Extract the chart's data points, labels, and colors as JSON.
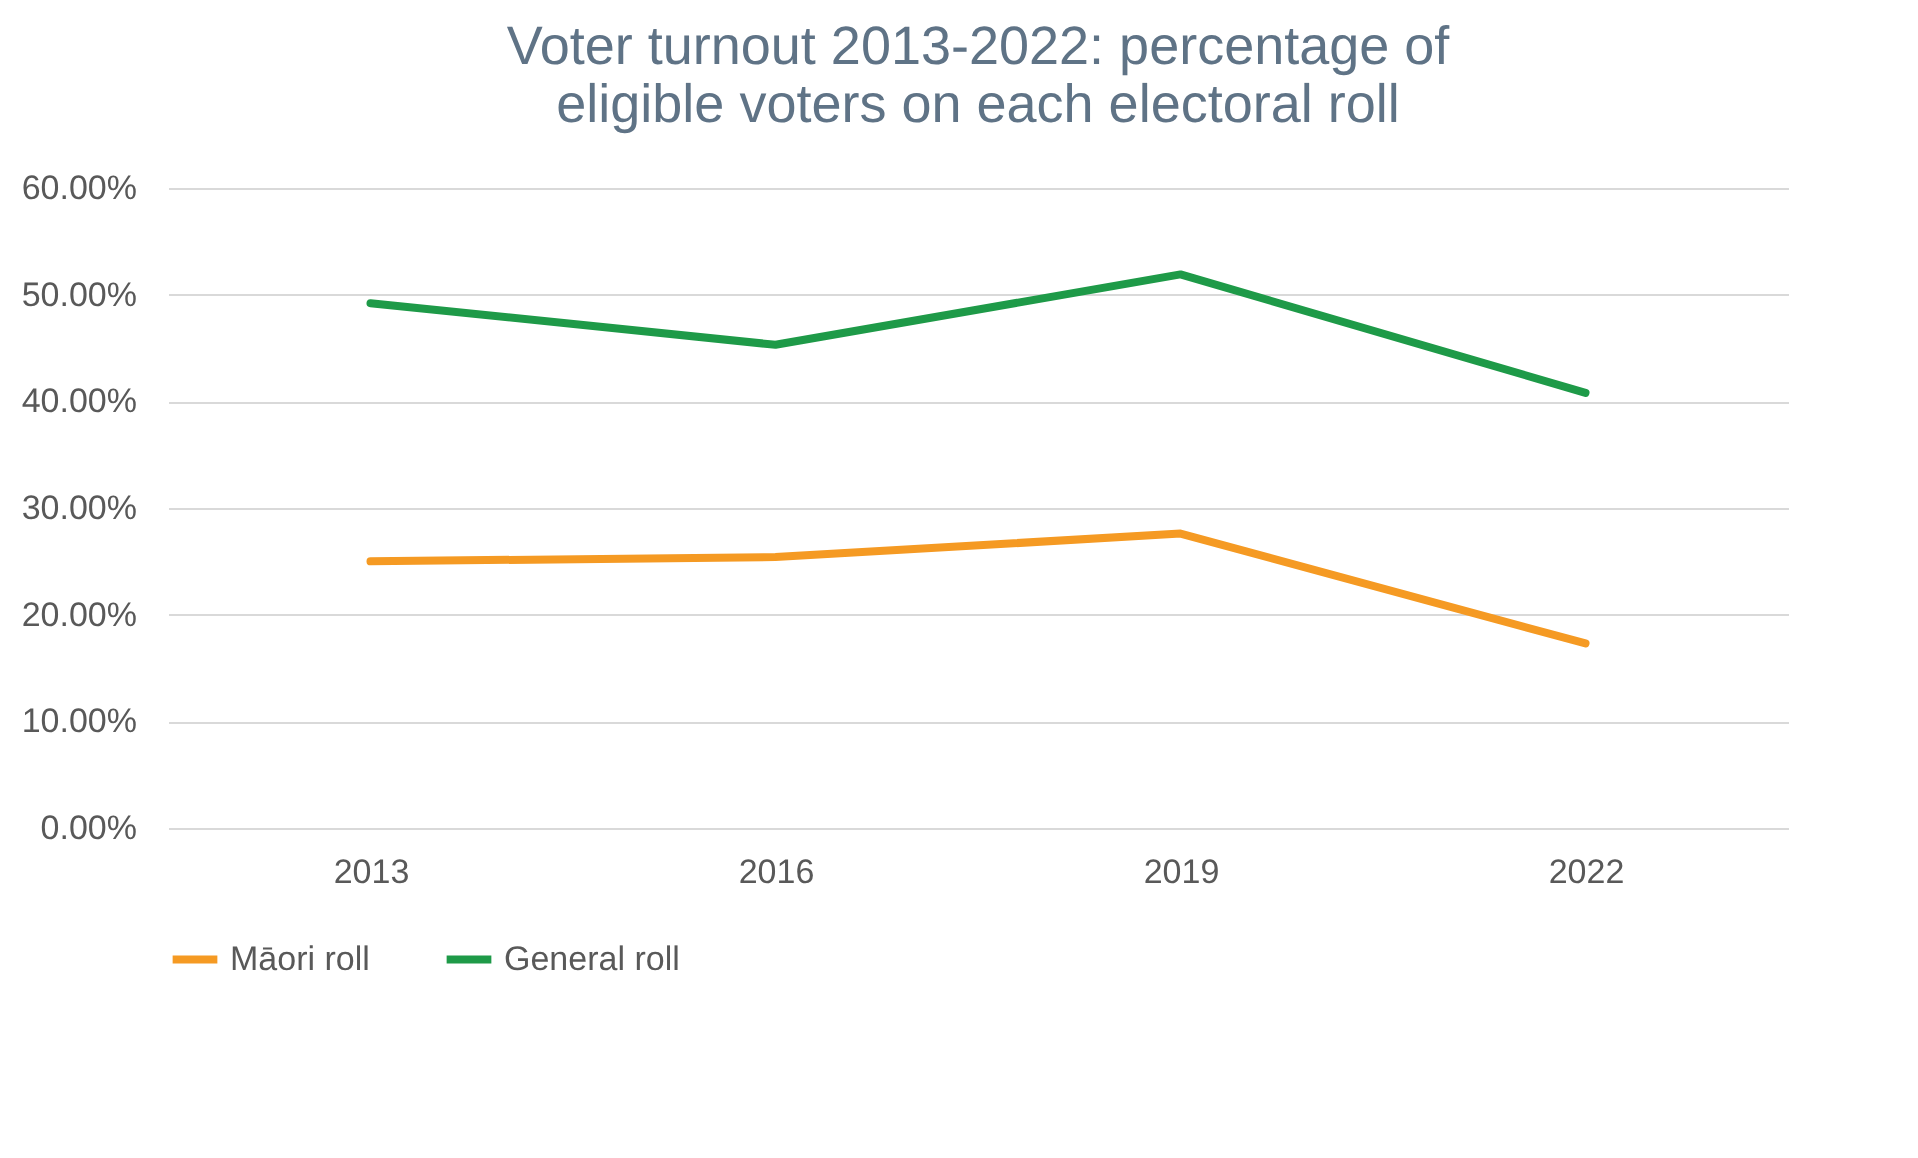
{
  "chart_data": {
    "type": "line",
    "title": [
      "Voter turnout 2013-2022: percentage of",
      "eligible voters on each electoral roll"
    ],
    "categories": [
      "2013",
      "2016",
      "2019",
      "2022"
    ],
    "series": [
      {
        "name": "Māori roll",
        "color": "#f59a23",
        "values": [
          25.0,
          25.4,
          27.6,
          17.3
        ]
      },
      {
        "name": "General roll",
        "color": "#1e9a48",
        "values": [
          49.2,
          45.3,
          51.9,
          40.8
        ]
      }
    ],
    "ylim": [
      0,
      60
    ],
    "yticks": [
      {
        "value": 0,
        "label": "0.00%"
      },
      {
        "value": 10,
        "label": "10.00%"
      },
      {
        "value": 20,
        "label": "20.00%"
      },
      {
        "value": 30,
        "label": "30.00%"
      },
      {
        "value": 40,
        "label": "40.00%"
      },
      {
        "value": 50,
        "label": "50.00%"
      },
      {
        "value": 60,
        "label": "60.00%"
      }
    ],
    "grid": "y",
    "legend": "bottom"
  }
}
